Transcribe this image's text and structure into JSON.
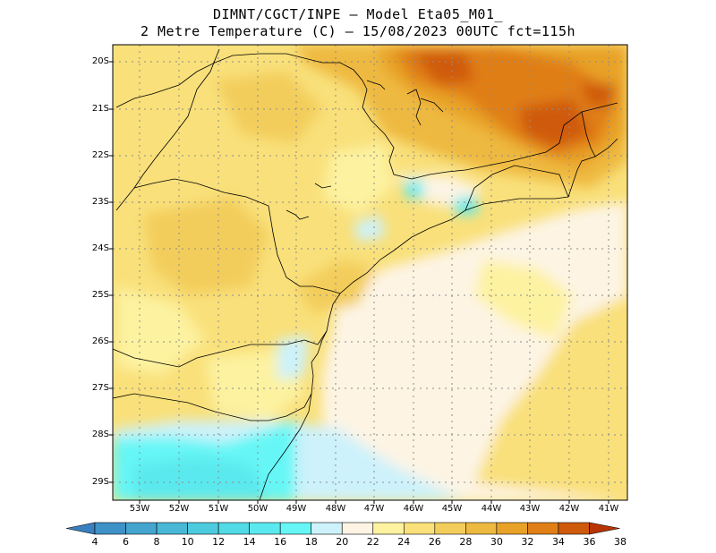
{
  "title": {
    "line1": "DIMNT/CGCT/INPE –  Model Eta05_M01_",
    "line2": "2 Metre Temperature (C) –  15/08/2023 00UTC fct=115h"
  },
  "map": {
    "lat_labels": [
      "20S",
      "21S",
      "22S",
      "23S",
      "24S",
      "25S",
      "26S",
      "27S",
      "28S",
      "29S"
    ],
    "lon_labels": [
      "53W",
      "52W",
      "51W",
      "50W",
      "49W",
      "48W",
      "47W",
      "46W",
      "45W",
      "44W",
      "43W",
      "42W",
      "41W"
    ],
    "colors": {
      "frame": "#000000",
      "grid": "#8c8c8c",
      "border": "#000000"
    }
  },
  "colorbar": {
    "labels": [
      "4",
      "6",
      "8",
      "10",
      "12",
      "14",
      "16",
      "18",
      "20",
      "22",
      "24",
      "26",
      "28",
      "30",
      "32",
      "34",
      "36",
      "38"
    ],
    "colors": [
      "#3a7fbf",
      "#3f92c7",
      "#44a5cf",
      "#48b8d6",
      "#4ccbde",
      "#52dbe6",
      "#5ae9ee",
      "#66f6f6",
      "#cdf2fb",
      "#fdf4e4",
      "#fdf2a0",
      "#f9e07a",
      "#f3cd5c",
      "#eeb940",
      "#e8a228",
      "#e07e17",
      "#cf5a0c",
      "#b83405"
    ]
  }
}
